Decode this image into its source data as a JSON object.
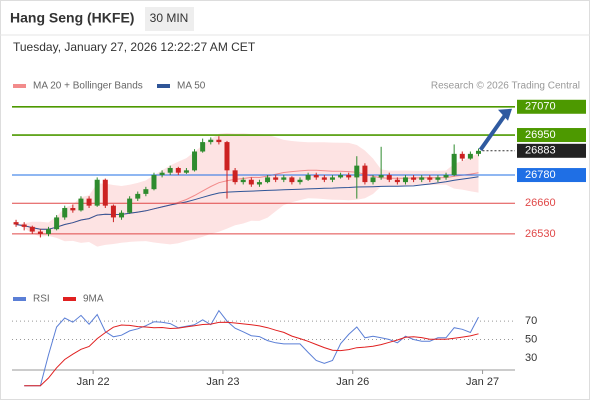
{
  "chart_data": {
    "type": "candlestick",
    "title": "Hang Seng (HKFE)",
    "interval": "30 MIN",
    "timestamp": "Tuesday, January 27, 2026 12:22:27 AM CET",
    "legend": [
      {
        "name": "MA 20 + Bollinger Bands",
        "color": "#f28b8b"
      },
      {
        "name": "MA 50",
        "color": "#2f5597"
      }
    ],
    "credit": "Research © 2026 Trading Central",
    "open": [
      26580,
      26570,
      26560,
      26540,
      26530,
      26550,
      26600,
      26640,
      26630,
      26680,
      26650,
      26760,
      26650,
      26600,
      26620,
      26680,
      26700,
      26720,
      26780,
      26790,
      26810,
      26790,
      26800,
      26880,
      26920,
      26930,
      26920,
      26800,
      26750,
      26760,
      26740,
      26750,
      26770,
      26760,
      26770,
      26750,
      26760,
      26780,
      26770,
      26760,
      26770,
      26780,
      26770,
      26820,
      26750,
      26770,
      26780,
      26760,
      26750,
      26770,
      26760,
      26770,
      26760,
      26770,
      26780,
      26870,
      26850,
      26870
    ],
    "high": [
      26590,
      26580,
      26565,
      26550,
      26560,
      26610,
      26650,
      26655,
      26690,
      26690,
      26770,
      26765,
      26655,
      26630,
      26690,
      26710,
      26730,
      26790,
      26800,
      26820,
      26815,
      26810,
      26890,
      26935,
      26940,
      26945,
      26925,
      26810,
      26770,
      26770,
      26760,
      26780,
      26780,
      26780,
      26775,
      26770,
      26790,
      26790,
      26780,
      26780,
      26790,
      26790,
      26860,
      26830,
      26780,
      26900,
      26790,
      26770,
      26780,
      26780,
      26780,
      26780,
      26780,
      26790,
      26910,
      26880,
      26880,
      26893
    ],
    "low": [
      26560,
      26545,
      26530,
      26515,
      26520,
      26545,
      26590,
      26620,
      26625,
      26640,
      26645,
      26640,
      26580,
      26590,
      26615,
      26670,
      26690,
      26715,
      26770,
      26780,
      26780,
      26785,
      26795,
      26875,
      26910,
      26910,
      26680,
      26740,
      26740,
      26730,
      26730,
      26745,
      26750,
      26750,
      26740,
      26740,
      26755,
      26760,
      26750,
      26750,
      26765,
      26760,
      26680,
      26740,
      26740,
      26760,
      26750,
      26740,
      26740,
      26750,
      26750,
      26750,
      26750,
      26760,
      26775,
      26840,
      26845,
      26860
    ],
    "close": [
      26570,
      26560,
      26540,
      26530,
      26550,
      26600,
      26640,
      26630,
      26680,
      26650,
      26760,
      26650,
      26600,
      26620,
      26680,
      26700,
      26720,
      26780,
      26790,
      26810,
      26790,
      26800,
      26880,
      26920,
      26930,
      26920,
      26800,
      26750,
      26760,
      26740,
      26750,
      26770,
      26760,
      26770,
      26750,
      26760,
      26780,
      26770,
      26760,
      26770,
      26780,
      26770,
      26820,
      26750,
      26770,
      26780,
      26760,
      26750,
      26770,
      26760,
      26770,
      26760,
      26770,
      26780,
      26870,
      26850,
      26870,
      26883
    ],
    "up_color": "#2e8b2e",
    "down_color": "#cc2222",
    "xlim": [
      0,
      62
    ],
    "ylim": [
      26330,
      27120
    ],
    "xticks": [
      {
        "value": 10,
        "label": "Jan 22"
      },
      {
        "value": 26,
        "label": "Jan 23"
      },
      {
        "value": 42,
        "label": "Jan 26"
      },
      {
        "value": 58,
        "label": "Jan 27"
      }
    ],
    "levels": [
      {
        "value": 27070,
        "color": "#4d9900",
        "filled": true
      },
      {
        "value": 26950,
        "color": "#4d9900",
        "filled": true
      },
      {
        "value": 26780,
        "color": "#1f6fe5",
        "filled": true
      },
      {
        "value": 26660,
        "color": "#e04848",
        "filled": false
      },
      {
        "value": 26530,
        "color": "#e04848",
        "filled": false
      }
    ],
    "indicator": {
      "legend": [
        {
          "name": "RSI",
          "color": "#5b7fd6"
        },
        {
          "name": "9MA",
          "color": "#e02020"
        }
      ],
      "ylim": [
        17,
        82
      ],
      "yticks": [
        70,
        50,
        30
      ]
    }
  }
}
